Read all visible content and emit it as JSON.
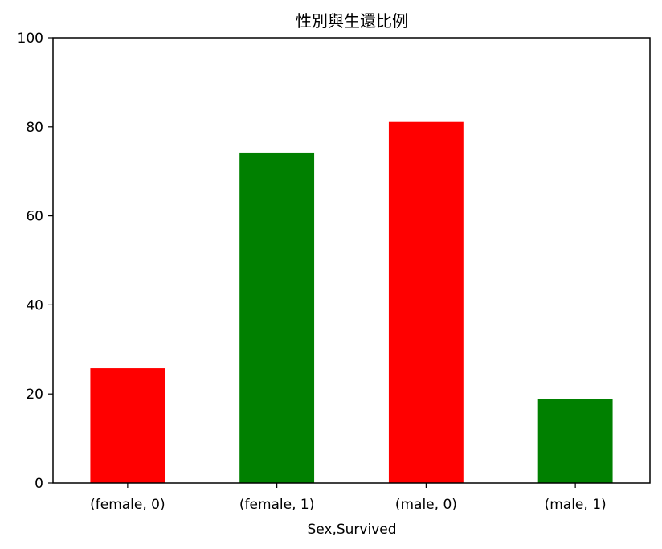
{
  "chart_data": {
    "type": "bar",
    "title": "性別與生還比例",
    "xlabel": "Sex,Survived",
    "ylabel": "",
    "categories": [
      "(female, 0)",
      "(female, 1)",
      "(male, 0)",
      "(male, 1)"
    ],
    "values": [
      25.8,
      74.2,
      81.1,
      18.9
    ],
    "colors": [
      "#ff0000",
      "#008000",
      "#ff0000",
      "#008000"
    ],
    "ylim": [
      0,
      100
    ],
    "yticks": [
      0,
      20,
      40,
      60,
      80,
      100
    ],
    "grid": false,
    "legend": "none"
  }
}
